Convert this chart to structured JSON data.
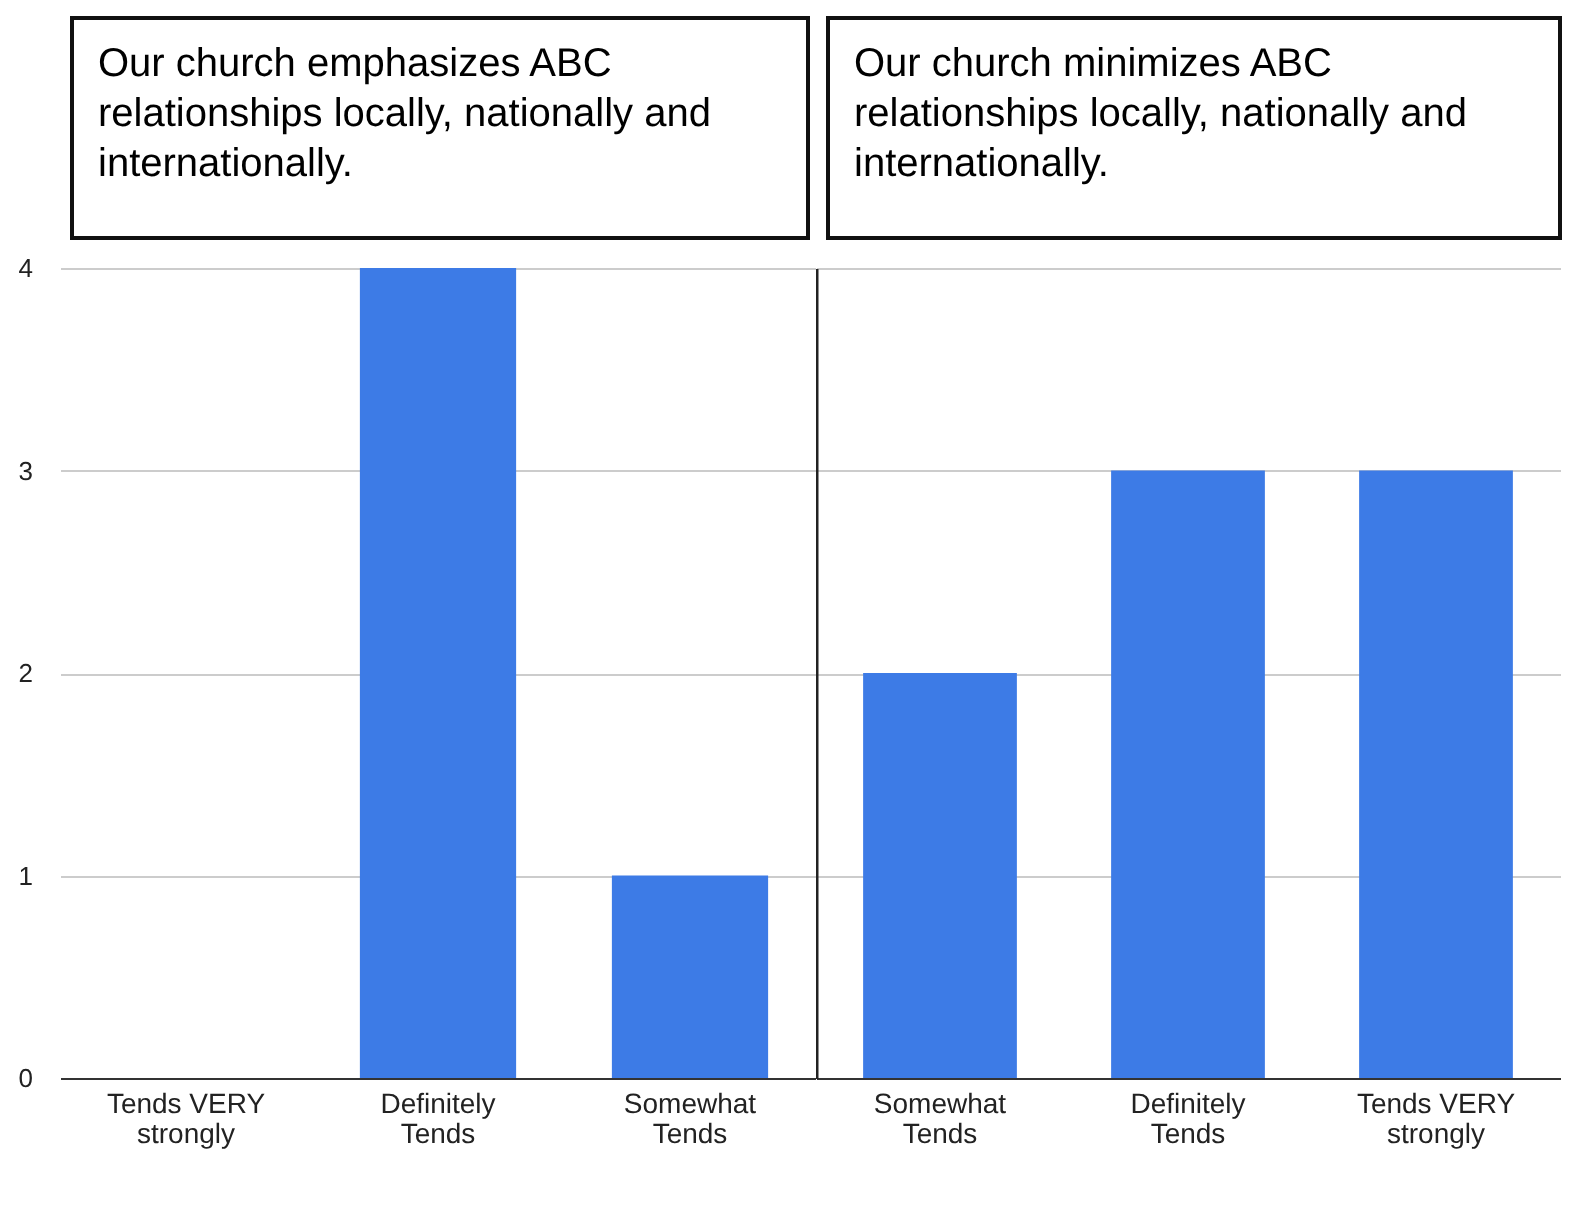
{
  "chart_data": [
    {
      "type": "bar",
      "title": "Our church emphasizes ABC relationships locally, nationally and internationally.",
      "categories": [
        "Tends VERY strongly",
        "Definitely Tends",
        "Somewhat Tends"
      ],
      "values": [
        0,
        4,
        1
      ],
      "color": "#3d7be6",
      "ylim": [
        0,
        4
      ],
      "yticks": [
        0,
        1,
        2,
        3,
        4
      ],
      "grid": "y"
    },
    {
      "type": "bar",
      "title": "Our church minimizes ABC relationships locally, nationally and internationally.",
      "categories": [
        "Somewhat Tends",
        "Definitely Tends",
        "Tends VERY strongly"
      ],
      "values": [
        2,
        3,
        3
      ],
      "color": "#3d7be6",
      "ylim": [
        0,
        4
      ],
      "yticks": [
        0,
        1,
        2,
        3,
        4
      ],
      "grid": "y",
      "tick_labels": "x"
    }
  ]
}
